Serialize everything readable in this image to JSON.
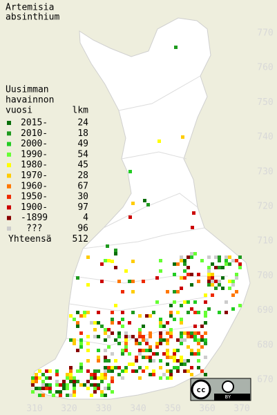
{
  "title": [
    "Artemisia",
    "absinthium"
  ],
  "legend": {
    "header": [
      "Uusimman",
      "havainnon",
      "vuosi"
    ],
    "count_header": "lkm",
    "rows": [
      {
        "label": "2015-",
        "count": 24,
        "color": "#0a6e0a"
      },
      {
        "label": "2010-",
        "count": 18,
        "color": "#1e9a1e"
      },
      {
        "label": "2000-",
        "count": 49,
        "color": "#22cc22"
      },
      {
        "label": "1990-",
        "count": 54,
        "color": "#66ff33"
      },
      {
        "label": "1980-",
        "count": 45,
        "color": "#ffff00"
      },
      {
        "label": "1970-",
        "count": 28,
        "color": "#ffcc00"
      },
      {
        "label": "1960-",
        "count": 67,
        "color": "#ff7700"
      },
      {
        "label": "1950-",
        "count": 30,
        "color": "#ee2a00"
      },
      {
        "label": "1900-",
        "count": 97,
        "color": "#cc0000"
      },
      {
        "label": "-1899",
        "count": 4,
        "color": "#880000"
      },
      {
        "label": "???",
        "count": 96,
        "color": "#cccccc"
      }
    ],
    "total": {
      "label": "Yhteensä",
      "value": 512
    }
  },
  "axes": {
    "x_labels": [
      310,
      320,
      330,
      340,
      350,
      360,
      370
    ],
    "y_labels": [
      770,
      760,
      750,
      740,
      730,
      720,
      710,
      700,
      690,
      680,
      670
    ]
  },
  "license": {
    "cc": "cc",
    "by": "BY"
  }
}
